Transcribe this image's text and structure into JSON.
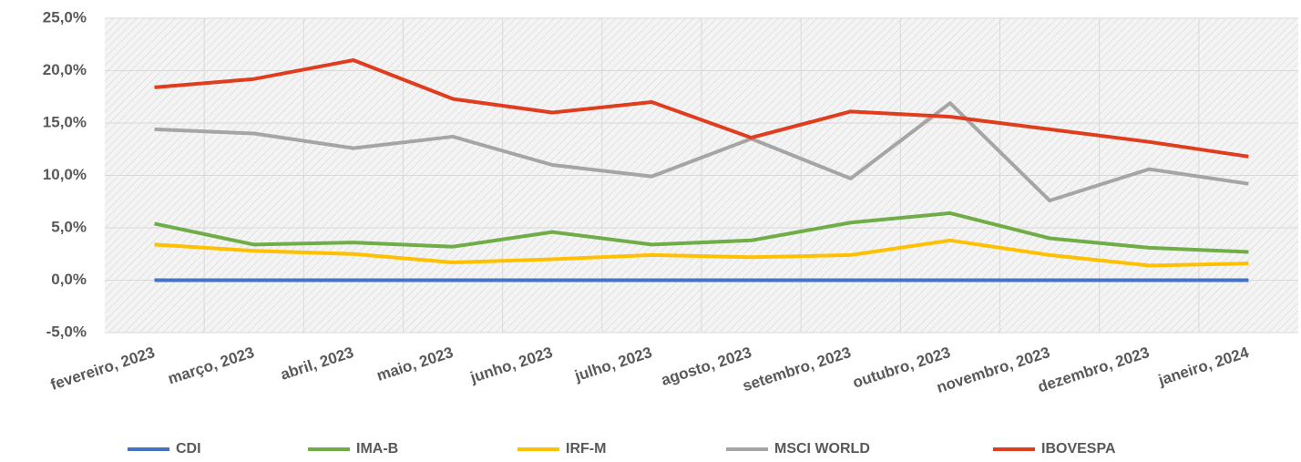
{
  "chart_data": {
    "type": "line",
    "categories": [
      "fevereiro, 2023",
      "março, 2023",
      "abril, 2023",
      "maio, 2023",
      "junho, 2023",
      "julho, 2023",
      "agosto, 2023",
      "setembro, 2023",
      "outubro, 2023",
      "novembro, 2023",
      "dezembro, 2023",
      "janeiro, 2024"
    ],
    "series": [
      {
        "name": "CDI",
        "color": "#4472c4",
        "values": [
          0,
          0,
          0,
          0,
          0,
          0,
          0,
          0,
          0,
          0,
          0,
          0
        ]
      },
      {
        "name": "IMA-B",
        "color": "#70ad47",
        "values": [
          5.4,
          3.4,
          3.6,
          3.2,
          4.6,
          3.4,
          3.8,
          5.5,
          6.4,
          4.0,
          3.1,
          2.7
        ]
      },
      {
        "name": "IRF-M",
        "color": "#ffc000",
        "values": [
          3.4,
          2.8,
          2.5,
          1.7,
          2.0,
          2.4,
          2.2,
          2.4,
          3.8,
          2.4,
          1.4,
          1.6
        ]
      },
      {
        "name": "MSCI WORLD",
        "color": "#a5a5a5",
        "values": [
          14.4,
          14.0,
          12.6,
          13.7,
          11.0,
          9.9,
          13.5,
          9.7,
          16.9,
          7.6,
          10.6,
          9.2
        ]
      },
      {
        "name": "IBOVESPA",
        "color": "#e03c1e",
        "values": [
          18.4,
          19.2,
          21.0,
          17.3,
          16.0,
          17.0,
          13.6,
          16.1,
          15.6,
          14.4,
          13.2,
          11.8
        ]
      }
    ],
    "ylim": [
      -5,
      25
    ],
    "yticks": [
      {
        "value": -5,
        "label": "-5,0%"
      },
      {
        "value": 0,
        "label": "0,0%"
      },
      {
        "value": 5,
        "label": "5,0%"
      },
      {
        "value": 10,
        "label": "10,0%"
      },
      {
        "value": 15,
        "label": "15,0%"
      },
      {
        "value": 20,
        "label": "20,0%"
      },
      {
        "value": 25,
        "label": "25,0%"
      }
    ],
    "grid": true,
    "legend": "bottom"
  }
}
